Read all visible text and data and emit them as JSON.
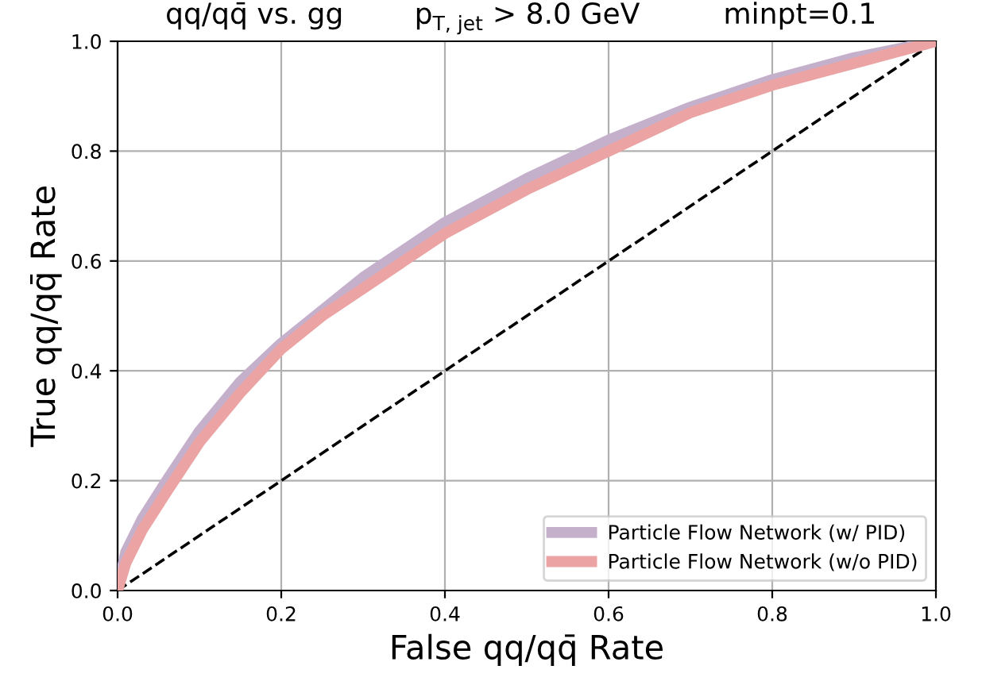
{
  "chart_data": {
    "type": "line",
    "title": "qq/qq̄ vs. gg     p$_{T, jet}$ > 8.0 GeV      minpt=0.1",
    "xlabel": "False qq/qq̄ Rate",
    "ylabel": "True qq/qq̄ Rate",
    "xlim": [
      0,
      1
    ],
    "ylim": [
      0,
      1
    ],
    "xticks": [
      {
        "value": 0,
        "label": "0.0"
      },
      {
        "value": 0.2,
        "label": "0.2"
      },
      {
        "value": 0.4,
        "label": "0.4"
      },
      {
        "value": 0.6,
        "label": "0.6"
      },
      {
        "value": 0.8,
        "label": "0.8"
      },
      {
        "value": 1,
        "label": "1.0"
      }
    ],
    "yticks": [
      {
        "value": 0,
        "label": "0.0"
      },
      {
        "value": 0.2,
        "label": "0.2"
      },
      {
        "value": 0.4,
        "label": "0.4"
      },
      {
        "value": 0.6,
        "label": "0.6"
      },
      {
        "value": 0.8,
        "label": "0.8"
      },
      {
        "value": 1,
        "label": "1.0"
      }
    ],
    "grid": true,
    "legend": "bottom right",
    "marker": "none",
    "series": [
      {
        "name": "Particle Flow Network (w/ PID)",
        "color": "#c5b0cc",
        "line_style": "solid",
        "x": [
          0,
          0.01,
          0.03,
          0.06,
          0.1,
          0.15,
          0.2,
          0.25,
          0.3,
          0.35,
          0.4,
          0.5,
          0.6,
          0.7,
          0.8,
          0.9,
          1
        ],
        "values": [
          0,
          0.07,
          0.13,
          0.2,
          0.29,
          0.38,
          0.45,
          0.51,
          0.57,
          0.62,
          0.67,
          0.75,
          0.82,
          0.88,
          0.93,
          0.97,
          1
        ]
      },
      {
        "name": "Particle Flow Network (w/o PID)",
        "color": "#eba3a3",
        "line_style": "solid",
        "x": [
          0,
          0.01,
          0.03,
          0.06,
          0.1,
          0.15,
          0.2,
          0.25,
          0.3,
          0.35,
          0.4,
          0.5,
          0.6,
          0.7,
          0.8,
          0.9,
          1
        ],
        "values": [
          0,
          0.05,
          0.11,
          0.18,
          0.27,
          0.36,
          0.44,
          0.5,
          0.55,
          0.6,
          0.65,
          0.73,
          0.8,
          0.87,
          0.92,
          0.96,
          1
        ]
      },
      {
        "color": "#000000",
        "line_style": "dashed",
        "x": [
          0,
          1
        ],
        "values": [
          0,
          1
        ]
      }
    ]
  }
}
